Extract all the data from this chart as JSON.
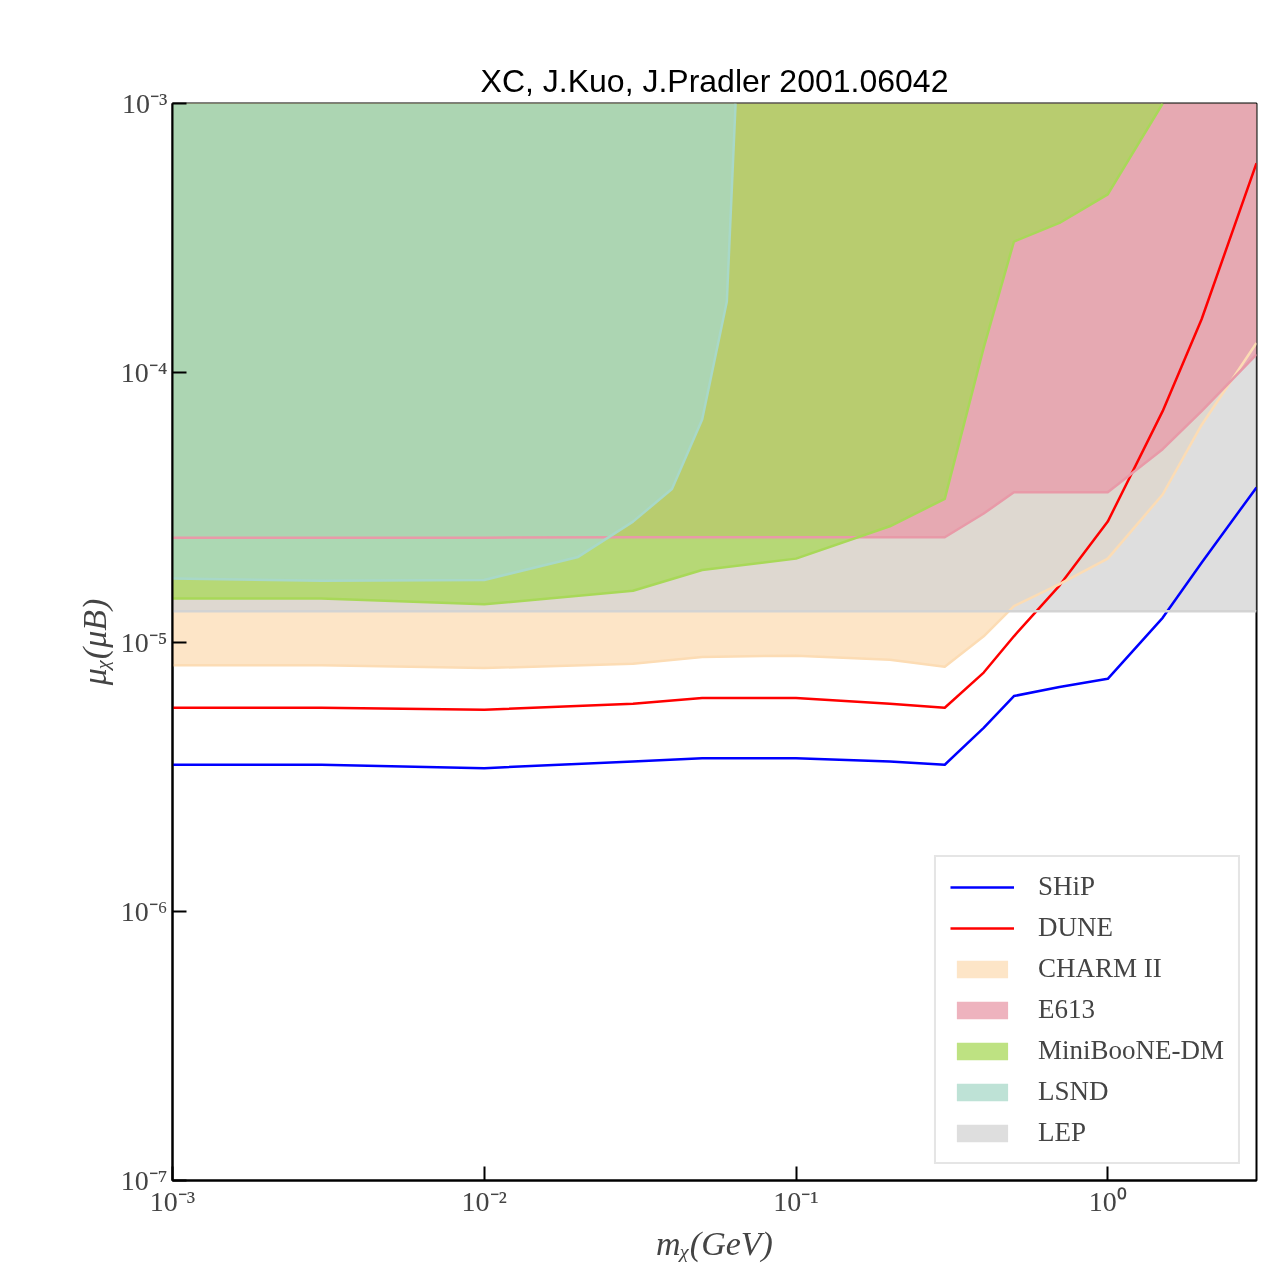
{
  "chart_data": {
    "type": "line",
    "title": "XC, J.Kuo, J.Pradler 2001.06042",
    "xlabel": "mᵪ(GeV)",
    "ylabel": "μᵪ(μB)",
    "log": "xy",
    "grid": false,
    "legend": "bottom right",
    "xlim": [
      0.001,
      3
    ],
    "ylim": [
      1e-07,
      0.001
    ],
    "xticks": [
      {
        "value": 0.001,
        "label": "10⁻³"
      },
      {
        "value": 0.01,
        "label": "10⁻²"
      },
      {
        "value": 0.1,
        "label": "10⁻¹"
      },
      {
        "value": 1,
        "label": "10⁰"
      }
    ],
    "yticks": [
      {
        "value": 1e-07,
        "label": "10⁻⁷"
      },
      {
        "value": 1e-06,
        "label": "10⁻⁶"
      },
      {
        "value": 1e-05,
        "label": "10⁻⁵"
      },
      {
        "value": 0.0001,
        "label": "10⁻⁴"
      },
      {
        "value": 0.001,
        "label": "10⁻³"
      }
    ],
    "series": [
      {
        "name": "SHiP",
        "color": "#0000ff",
        "x": [
          0.001,
          0.003,
          0.01,
          0.03,
          0.05,
          0.1,
          0.2,
          0.3,
          0.4,
          0.5,
          0.7,
          1,
          1.5,
          2,
          3
        ],
        "values": [
          3.5e-06,
          3.5e-06,
          3.4e-06,
          3.6e-06,
          3.7e-06,
          3.7e-06,
          3.6e-06,
          3.5e-06,
          4.8e-06,
          6.3e-06,
          6.8e-06,
          7.3e-06,
          1.23e-05,
          1.97e-05,
          3.75e-05
        ]
      },
      {
        "name": "DUNE",
        "color": "#ff0000",
        "x": [
          0.001,
          0.003,
          0.01,
          0.03,
          0.05,
          0.1,
          0.2,
          0.3,
          0.4,
          0.5,
          0.7,
          1,
          1.5,
          2,
          3
        ],
        "values": [
          5.7e-06,
          5.7e-06,
          5.6e-06,
          5.9e-06,
          6.2e-06,
          6.2e-06,
          5.9e-06,
          5.7e-06,
          7.7e-06,
          1.05e-05,
          1.62e-05,
          2.8e-05,
          7.2e-05,
          0.000158,
          0.0006
        ]
      },
      {
        "name": "CHARM II",
        "color": "#fcdcb4",
        "x": [
          0.001,
          0.003,
          0.01,
          0.03,
          0.05,
          0.1,
          0.2,
          0.3,
          0.4,
          0.5,
          0.7,
          1,
          1.5,
          2,
          3
        ],
        "values": [
          8.2e-06,
          8.2e-06,
          8e-06,
          8.3e-06,
          8.8e-06,
          8.9e-06,
          8.6e-06,
          8.1e-06,
          1.05e-05,
          1.36e-05,
          1.64e-05,
          2.04e-05,
          3.53e-05,
          6.4e-05,
          0.000129
        ],
        "lower": [
          8.2e-06,
          8.2e-06,
          8e-06,
          8.3e-06,
          8.8e-06,
          8.9e-06,
          8.6e-06,
          8.1e-06,
          1.05e-05,
          1.36e-05,
          1.64e-05,
          2.04e-05,
          3.53e-05,
          6.4e-05,
          0.000129
        ],
        "upper": [
          0.001,
          0.001,
          0.001,
          0.001,
          0.001,
          0.001,
          0.001,
          0.001,
          0.001,
          0.001,
          0.001,
          0.001,
          0.001,
          0.001,
          0.001
        ]
      },
      {
        "name": "E613",
        "color": "#e89aa8",
        "x": [
          0.001,
          0.003,
          0.01,
          0.03,
          0.05,
          0.1,
          0.2,
          0.3,
          0.4,
          0.5,
          0.7,
          1,
          1.5,
          2,
          3
        ],
        "values": [
          2.44e-05,
          2.44e-05,
          2.44e-05,
          2.45e-05,
          2.45e-05,
          2.45e-05,
          2.45e-05,
          2.45e-05,
          3e-05,
          3.6e-05,
          3.6e-05,
          3.6e-05,
          5.2e-05,
          7.2e-05,
          0.000117
        ],
        "lower": [
          2.44e-05,
          2.44e-05,
          2.44e-05,
          2.45e-05,
          2.45e-05,
          2.45e-05,
          2.45e-05,
          2.45e-05,
          3e-05,
          3.6e-05,
          3.6e-05,
          3.6e-05,
          5.2e-05,
          7.2e-05,
          0.000117
        ],
        "upper": [
          0.001,
          0.001,
          0.001,
          0.001,
          0.001,
          0.001,
          0.001,
          0.001,
          0.001,
          0.001,
          0.001,
          0.001,
          0.001,
          0.001,
          0.001
        ]
      },
      {
        "name": "MiniBooNE-DM",
        "color": "#a8d858",
        "x": [
          0.001,
          0.003,
          0.01,
          0.03,
          0.05,
          0.1,
          0.2,
          0.3,
          0.4,
          0.5,
          0.7,
          1,
          1.5
        ],
        "values": [
          1.45e-05,
          1.45e-05,
          1.38e-05,
          1.55e-05,
          1.85e-05,
          2.04e-05,
          2.69e-05,
          3.4e-05,
          0.000124,
          0.000307,
          0.00036,
          0.00046,
          0.001
        ],
        "lower": [
          1.45e-05,
          1.45e-05,
          1.38e-05,
          1.55e-05,
          1.85e-05,
          2.04e-05,
          2.69e-05,
          3.4e-05,
          0.000124,
          0.000307,
          0.00036,
          0.00046,
          0.001
        ],
        "upper": [
          0.001,
          0.001,
          0.001,
          0.001,
          0.001,
          0.001,
          0.001,
          0.001,
          0.001,
          0.001,
          0.001,
          0.001,
          0.001
        ]
      },
      {
        "name": "LSND",
        "color": "#a8d8c8",
        "x": [
          0.001,
          0.003,
          0.01,
          0.02,
          0.03,
          0.04,
          0.05,
          0.06,
          0.064
        ],
        "values": [
          1.72e-05,
          1.69e-05,
          1.7e-05,
          2.07e-05,
          2.8e-05,
          3.7e-05,
          6.7e-05,
          0.000184,
          0.001
        ],
        "lower": [
          1.72e-05,
          1.69e-05,
          1.7e-05,
          2.07e-05,
          2.8e-05,
          3.7e-05,
          6.7e-05,
          0.000184,
          0.001
        ],
        "upper": [
          0.001,
          0.001,
          0.001,
          0.001,
          0.001,
          0.001,
          0.001,
          0.001,
          0.001
        ]
      },
      {
        "name": "LEP",
        "color": "#d3d3d3",
        "x": [
          0.001,
          3
        ],
        "values": [
          1.3e-05,
          1.3e-05
        ],
        "lower": [
          1.3e-05,
          1.3e-05
        ],
        "upper": [
          0.001,
          0.001
        ]
      }
    ]
  }
}
